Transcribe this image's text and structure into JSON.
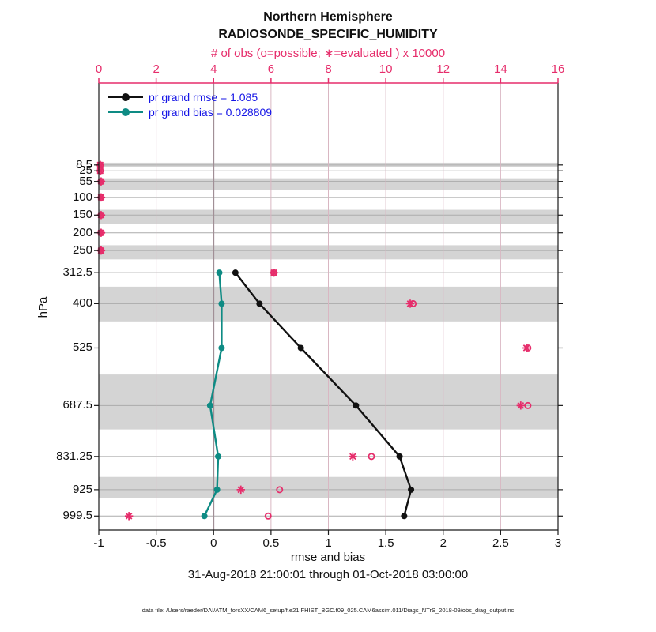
{
  "header": {
    "region": "Northern Hemisphere",
    "variable": "RADIOSONDE_SPECIFIC_HUMIDITY"
  },
  "axes": {
    "top": {
      "label": "# of obs (o=possible; ∗=evaluated ) x 10000",
      "tick_labels": [
        "0",
        "2",
        "4",
        "6",
        "8",
        "10",
        "12",
        "14",
        "16"
      ],
      "tick_values": [
        0,
        2,
        4,
        6,
        8,
        10,
        12,
        14,
        16
      ]
    },
    "bottom": {
      "label": "rmse and bias",
      "tick_labels": [
        "-1",
        "-0.5",
        "0",
        "0.5",
        "1",
        "1.5",
        "2",
        "2.5",
        "3"
      ],
      "tick_values": [
        -1,
        -0.5,
        0,
        0.5,
        1,
        1.5,
        2,
        2.5,
        3
      ]
    },
    "left": {
      "label": "hPa",
      "tick_labels": [
        "8.5",
        "25",
        "55",
        "100",
        "150",
        "200",
        "250",
        "312.5",
        "400",
        "525",
        "687.5",
        "831.25",
        "925",
        "999.5"
      ]
    }
  },
  "legend": {
    "items": [
      {
        "label": "pr grand rmse = 1.085",
        "color": "#111111",
        "series": "rmse"
      },
      {
        "label": "pr grand bias = 0.028809",
        "color": "#0e8b84",
        "series": "bias"
      }
    ]
  },
  "footer": {
    "date_range": "31-Aug-2018 21:00:01 through 01-Oct-2018 03:00:00",
    "data_file": "data file: /Users/raeder/DAI/ATM_forcXX/CAM6_setup/f.e21.FHIST_BGC.f09_025.CAM6assim.011/Diags_NTrS_2018-09/obs_diag_output.nc"
  },
  "colors": {
    "obs_pink": "#e62d6b",
    "bias_teal": "#0e8b84",
    "rmse_black": "#111111",
    "legend_text_blue": "#1414e6",
    "band_gray": "#d4d4d4",
    "grid_pink": "#d9b6c2",
    "level_gray": "#ababab",
    "zero_line": "#a18f96",
    "spine_black": "#1a1a1a"
  },
  "chart_data": {
    "type": "line",
    "title": "Northern Hemisphere RADIOSONDE_SPECIFIC_HUMIDITY",
    "ylabel": "hPa",
    "xlabel_bottom": "rmse and bias",
    "xlabel_top": "# of obs (o=possible; ∗=evaluated ) x 10000",
    "y_axis_inverted_pressure": true,
    "ylim": [
      -223,
      1039
    ],
    "xlim_bottom": [
      -1,
      3
    ],
    "xlim_top": [
      0,
      16
    ],
    "grand_rmse": 1.085,
    "grand_bias": 0.028809,
    "levels_hPa": [
      8.5,
      25,
      55,
      100,
      150,
      200,
      250,
      312.5,
      400,
      525,
      687.5,
      831.25,
      925,
      999.5
    ],
    "series": [
      {
        "name": "pr grand rmse",
        "axis": "bottom",
        "marker": "filled-circle",
        "color_key": "rmse_black",
        "values": [
          null,
          null,
          null,
          null,
          null,
          null,
          null,
          0.19,
          0.4,
          0.76,
          1.24,
          1.62,
          1.72,
          1.66
        ]
      },
      {
        "name": "pr grand bias",
        "axis": "bottom",
        "marker": "filled-circle",
        "color_key": "bias_teal",
        "values": [
          null,
          null,
          null,
          null,
          null,
          null,
          null,
          0.05,
          0.07,
          0.07,
          -0.03,
          0.04,
          0.03,
          -0.08
        ]
      },
      {
        "name": "possible obs (o) x 10000",
        "axis": "top",
        "marker": "o",
        "color_key": "obs_pink",
        "values": [
          0.05,
          0.05,
          0.08,
          0.08,
          0.08,
          0.08,
          0.08,
          6.1,
          10.95,
          14.95,
          14.95,
          9.5,
          6.3,
          5.9
        ]
      },
      {
        "name": "evaluated obs (*) x 10000",
        "axis": "top",
        "marker": "asterisk",
        "color_key": "obs_pink",
        "values": [
          0.05,
          0.05,
          0.08,
          0.08,
          0.08,
          0.08,
          0.08,
          6.1,
          10.85,
          14.9,
          14.7,
          8.85,
          4.95,
          1.05
        ]
      }
    ],
    "shaded_bands_hPa": [
      [
        2,
        15
      ],
      [
        46,
        79
      ],
      [
        135,
        175
      ],
      [
        235,
        275
      ],
      [
        352,
        450
      ],
      [
        600,
        755
      ],
      [
        889,
        949
      ]
    ],
    "grid": {
      "vertical_at_bottom_ticks": true,
      "horizontal_at_levels": true,
      "zero_reference_line": 0
    },
    "legend_position": "upper-left-inside"
  }
}
